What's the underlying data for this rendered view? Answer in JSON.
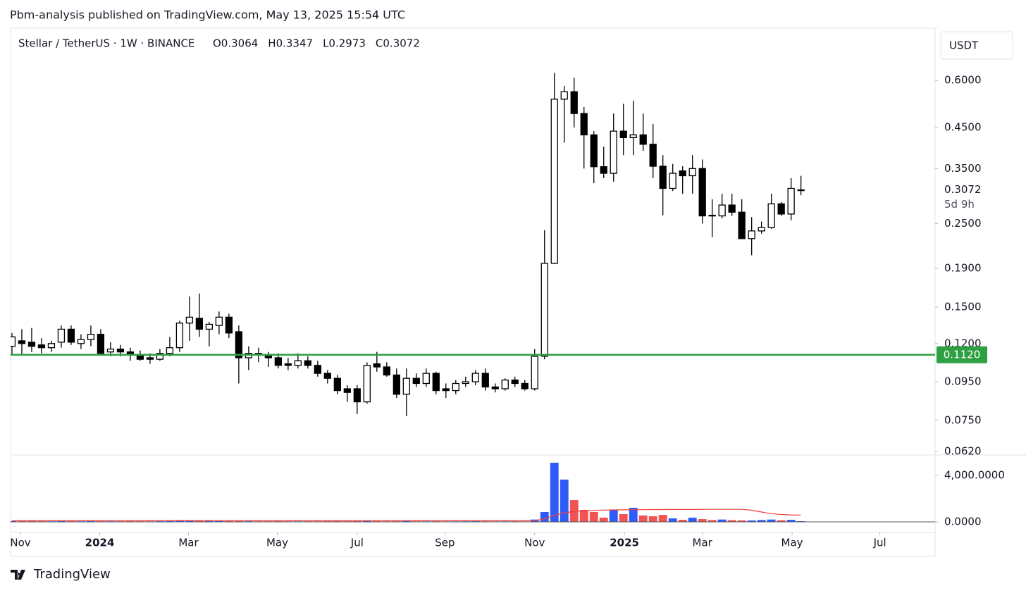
{
  "header": {
    "text": "Pbm-analysis published on TradingView.com, May 13, 2025 15:54 UTC"
  },
  "footer": {
    "brand": "TradingView"
  },
  "chart_data": {
    "type": "candlestick",
    "legend": {
      "symbol": "Stellar / TetherUS · 1W · BINANCE",
      "ohlc": [
        "O0.3064",
        "H0.3347",
        "L0.2973",
        "C0.3072"
      ]
    },
    "currency": "USDT",
    "countdown": "5d 9h",
    "log_scale": true,
    "up_color": "#ffffff",
    "down_color": "#000000",
    "border_color": "#000000",
    "ylim": [
      0.0607,
      0.826
    ],
    "yticks": [
      {
        "value": 0.062,
        "label": "0.0620"
      },
      {
        "value": 0.075,
        "label": "0.0750"
      },
      {
        "value": 0.095,
        "label": "0.0950"
      },
      {
        "value": 0.12,
        "label": "0.1200"
      },
      {
        "value": 0.15,
        "label": "0.1500"
      },
      {
        "value": 0.19,
        "label": "0.1900"
      },
      {
        "value": 0.25,
        "label": "0.2500"
      },
      {
        "value": 0.35,
        "label": "0.3500"
      },
      {
        "value": 0.45,
        "label": "0.4500"
      },
      {
        "value": 0.6,
        "label": "0.6000"
      }
    ],
    "xlim": [
      -0.14,
      93.6
    ],
    "xticks": [
      {
        "value": 0.86,
        "label": "Nov"
      },
      {
        "value": 8.9,
        "label": "2024"
      },
      {
        "value": 17.9,
        "label": "Mar"
      },
      {
        "value": 26.9,
        "label": "May"
      },
      {
        "value": 35.0,
        "label": "Jul"
      },
      {
        "value": 43.9,
        "label": "Sep"
      },
      {
        "value": 53.0,
        "label": "Nov"
      },
      {
        "value": 62.1,
        "label": "2025"
      },
      {
        "value": 70.0,
        "label": "Mar"
      },
      {
        "value": 79.1,
        "label": "May"
      },
      {
        "value": 88.0,
        "label": "Jul"
      }
    ],
    "level": {
      "value": 0.112,
      "label": "0.1120",
      "color": "#2ea043"
    },
    "open": [
      0.118,
      0.122,
      0.121,
      0.119,
      0.117,
      0.121,
      0.131,
      0.12,
      0.123,
      0.127,
      0.114,
      0.116,
      0.114,
      0.112,
      0.11,
      0.109,
      0.113,
      0.117,
      0.136,
      0.14,
      0.131,
      0.134,
      0.141,
      0.129,
      0.11,
      0.113,
      0.112,
      0.11,
      0.106,
      0.105,
      0.108,
      0.105,
      0.1,
      0.097,
      0.091,
      0.091,
      0.084,
      0.106,
      0.104,
      0.099,
      0.088,
      0.097,
      0.094,
      0.1,
      0.091,
      0.09,
      0.094,
      0.095,
      0.1,
      0.092,
      0.091,
      0.096,
      0.094,
      0.091,
      0.111,
      0.196,
      0.535,
      0.56,
      0.49,
      0.43,
      0.354,
      0.34,
      0.44,
      0.423,
      0.43,
      0.406,
      0.355,
      0.31,
      0.345,
      0.335,
      0.35,
      0.263,
      0.262,
      0.28,
      0.268,
      0.228,
      0.239,
      0.244,
      0.282,
      0.265,
      0.3064
    ],
    "high": [
      0.128,
      0.131,
      0.132,
      0.124,
      0.122,
      0.134,
      0.134,
      0.127,
      0.134,
      0.131,
      0.121,
      0.119,
      0.117,
      0.115,
      0.113,
      0.116,
      0.125,
      0.138,
      0.16,
      0.163,
      0.137,
      0.146,
      0.144,
      0.134,
      0.118,
      0.117,
      0.114,
      0.113,
      0.11,
      0.113,
      0.111,
      0.108,
      0.102,
      0.099,
      0.093,
      0.093,
      0.107,
      0.114,
      0.107,
      0.103,
      0.103,
      0.1,
      0.103,
      0.101,
      0.094,
      0.096,
      0.098,
      0.102,
      0.103,
      0.094,
      0.097,
      0.098,
      0.096,
      0.116,
      0.24,
      0.628,
      0.58,
      0.61,
      0.51,
      0.44,
      0.4,
      0.49,
      0.52,
      0.53,
      0.49,
      0.46,
      0.38,
      0.36,
      0.355,
      0.38,
      0.37,
      0.29,
      0.3,
      0.3,
      0.29,
      0.26,
      0.253,
      0.3,
      0.285,
      0.33,
      0.3347
    ],
    "low": [
      0.112,
      0.112,
      0.114,
      0.113,
      0.114,
      0.117,
      0.119,
      0.116,
      0.118,
      0.112,
      0.111,
      0.111,
      0.108,
      0.108,
      0.106,
      0.108,
      0.111,
      0.114,
      0.122,
      0.125,
      0.118,
      0.127,
      0.124,
      0.094,
      0.102,
      0.107,
      0.104,
      0.103,
      0.102,
      0.103,
      0.103,
      0.098,
      0.094,
      0.088,
      0.084,
      0.078,
      0.083,
      0.101,
      0.098,
      0.086,
      0.077,
      0.092,
      0.092,
      0.088,
      0.086,
      0.088,
      0.092,
      0.093,
      0.09,
      0.089,
      0.09,
      0.092,
      0.09,
      0.09,
      0.109,
      0.195,
      0.41,
      0.45,
      0.35,
      0.32,
      0.33,
      0.323,
      0.38,
      0.38,
      0.39,
      0.33,
      0.263,
      0.305,
      0.3,
      0.3,
      0.25,
      0.23,
      0.258,
      0.262,
      0.228,
      0.206,
      0.235,
      0.242,
      0.262,
      0.255,
      0.2973
    ],
    "close": [
      0.125,
      0.12,
      0.118,
      0.117,
      0.12,
      0.131,
      0.121,
      0.123,
      0.127,
      0.113,
      0.116,
      0.114,
      0.112,
      0.109,
      0.109,
      0.113,
      0.117,
      0.136,
      0.141,
      0.131,
      0.135,
      0.141,
      0.128,
      0.11,
      0.113,
      0.112,
      0.11,
      0.105,
      0.105,
      0.108,
      0.105,
      0.1,
      0.097,
      0.09,
      0.089,
      0.084,
      0.105,
      0.104,
      0.099,
      0.088,
      0.097,
      0.094,
      0.1,
      0.09,
      0.09,
      0.094,
      0.095,
      0.1,
      0.092,
      0.091,
      0.096,
      0.094,
      0.091,
      0.111,
      0.196,
      0.535,
      0.56,
      0.49,
      0.43,
      0.354,
      0.34,
      0.44,
      0.423,
      0.43,
      0.406,
      0.355,
      0.31,
      0.34,
      0.335,
      0.35,
      0.262,
      0.262,
      0.28,
      0.268,
      0.228,
      0.239,
      0.244,
      0.282,
      0.265,
      0.31,
      0.3072
    ],
    "volume": {
      "up_color": "#2f5cf6",
      "down_color": "#f05454",
      "ma_color": "#f03c3c",
      "ylim": [
        0,
        5697
      ],
      "yticks": [
        {
          "value": 0,
          "label": "0.0000"
        },
        {
          "value": 4000,
          "label": "4,000.0000"
        }
      ],
      "values": [
        60,
        55,
        60,
        55,
        50,
        60,
        55,
        50,
        60,
        55,
        50,
        50,
        55,
        50,
        50,
        55,
        60,
        150,
        130,
        110,
        90,
        70,
        60,
        70,
        55,
        50,
        50,
        55,
        50,
        45,
        50,
        50,
        55,
        60,
        55,
        60,
        65,
        55,
        50,
        55,
        60,
        50,
        45,
        50,
        45,
        45,
        50,
        55,
        50,
        45,
        45,
        50,
        45,
        200,
        850,
        5090,
        3640,
        1880,
        1030,
        850,
        360,
        1030,
        670,
        1210,
        550,
        480,
        600,
        300,
        180,
        360,
        240,
        160,
        200,
        150,
        130,
        120,
        160,
        200,
        140,
        180,
        60
      ],
      "ma": [
        100,
        100,
        100,
        100,
        100,
        100,
        100,
        100,
        100,
        100,
        100,
        100,
        100,
        100,
        100,
        100,
        100,
        105,
        108,
        110,
        110,
        108,
        105,
        103,
        100,
        100,
        100,
        100,
        100,
        100,
        100,
        100,
        100,
        100,
        100,
        100,
        100,
        100,
        100,
        100,
        100,
        100,
        100,
        100,
        100,
        100,
        100,
        100,
        100,
        100,
        100,
        100,
        100,
        100,
        250,
        560,
        780,
        900,
        960,
        990,
        1010,
        1030,
        1040,
        1050,
        1050,
        1060,
        1060,
        1070,
        1070,
        1070,
        1075,
        1080,
        1080,
        1080,
        1080,
        1000,
        850,
        700,
        640,
        600,
        580
      ]
    }
  }
}
